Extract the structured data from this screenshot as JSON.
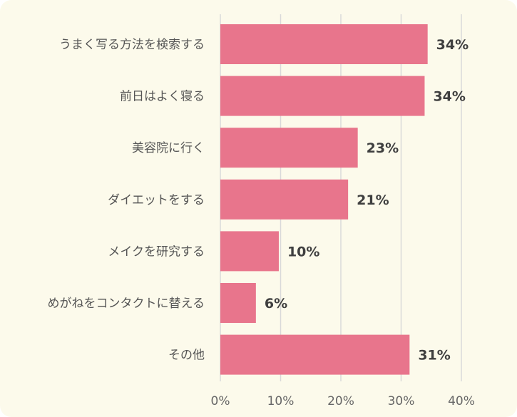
{
  "chart_data": {
    "type": "bar",
    "orientation": "horizontal",
    "categories": [
      "うまく写る方法を検索する",
      "前日はよく寝る",
      "美容院に行く",
      "ダイエットをする",
      "メイクを研究する",
      "めがねをコンタクトに替える",
      "その他"
    ],
    "values": [
      34,
      34,
      23,
      21,
      10,
      6,
      31
    ],
    "value_labels": [
      "34%",
      "34%",
      "23%",
      "21%",
      "10%",
      "6%",
      "31%"
    ],
    "bar_values_precise": [
      34.4,
      33.9,
      22.8,
      21.2,
      9.7,
      5.9,
      31.4
    ],
    "xlim": [
      0,
      40
    ],
    "xticks": [
      0,
      10,
      20,
      30,
      40
    ],
    "xtick_labels": [
      "0%",
      "10%",
      "20%",
      "30%",
      "40%"
    ],
    "grid": true,
    "colors": {
      "bar": "#e8758c",
      "background": "#fcfaeb",
      "grid": "#d9d9d9"
    }
  }
}
